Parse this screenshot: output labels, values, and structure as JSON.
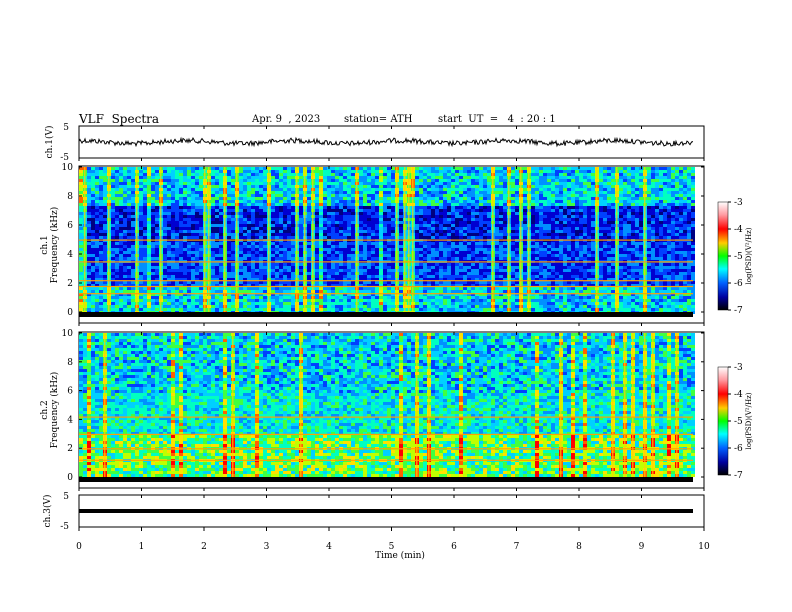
{
  "header": {
    "title": "VLF  Spectra",
    "date": "Apr. 9  , 2023",
    "station": "station= ATH",
    "start": "start  UT  =   4  : 20 : 1"
  },
  "panels": {
    "ch1_label": "ch.1(V)",
    "spec1_label": "ch.1",
    "spec2_label": "ch.2",
    "ch3_label": "ch.3(V)",
    "freq_label": "Frequency  (kHz)",
    "colorbar_label": "log(PSD)(V²/Hz)"
  },
  "chart_data": [
    {
      "type": "line",
      "title": "VLF  Spectra",
      "ylabel": "ch.1(V)",
      "ylim": [
        -5,
        5
      ],
      "xlim": [
        0,
        10
      ],
      "series": [
        {
          "values_summary": "noisy trace near 0 V"
        }
      ],
      "y_ticks": [
        "5",
        "-5"
      ]
    },
    {
      "type": "heatmap",
      "ylabel": "Frequency  (kHz)",
      "ylim": [
        0,
        10
      ],
      "xlim": [
        0,
        10
      ],
      "y_ticks": [
        "0",
        "2",
        "4",
        "6",
        "8",
        "10"
      ],
      "colorbar": {
        "label": "log(PSD)(V²/Hz)",
        "range": [
          -7,
          -3
        ],
        "ticks": [
          "-3",
          "-4",
          "-5",
          "-6",
          "-7"
        ]
      }
    },
    {
      "type": "heatmap",
      "ylabel": "Frequency  (kHz)",
      "ylim": [
        0,
        10
      ],
      "xlim": [
        0,
        10
      ],
      "y_ticks": [
        "0",
        "2",
        "4",
        "6",
        "8",
        "10"
      ],
      "colorbar": {
        "label": "log(PSD)(V²/Hz)",
        "range": [
          -7,
          -3
        ],
        "ticks": [
          "-3",
          "-4",
          "-5",
          "-6",
          "-7"
        ]
      }
    },
    {
      "type": "line",
      "ylabel": "ch.3(V)",
      "ylim": [
        -5,
        5
      ],
      "xlim": [
        0,
        10
      ],
      "xlabel": "Time  (min)",
      "x_ticks": [
        "0",
        "1",
        "2",
        "3",
        "4",
        "5",
        "6",
        "7",
        "8",
        "9",
        "10"
      ],
      "y_ticks": [
        "5",
        "-5"
      ]
    }
  ]
}
